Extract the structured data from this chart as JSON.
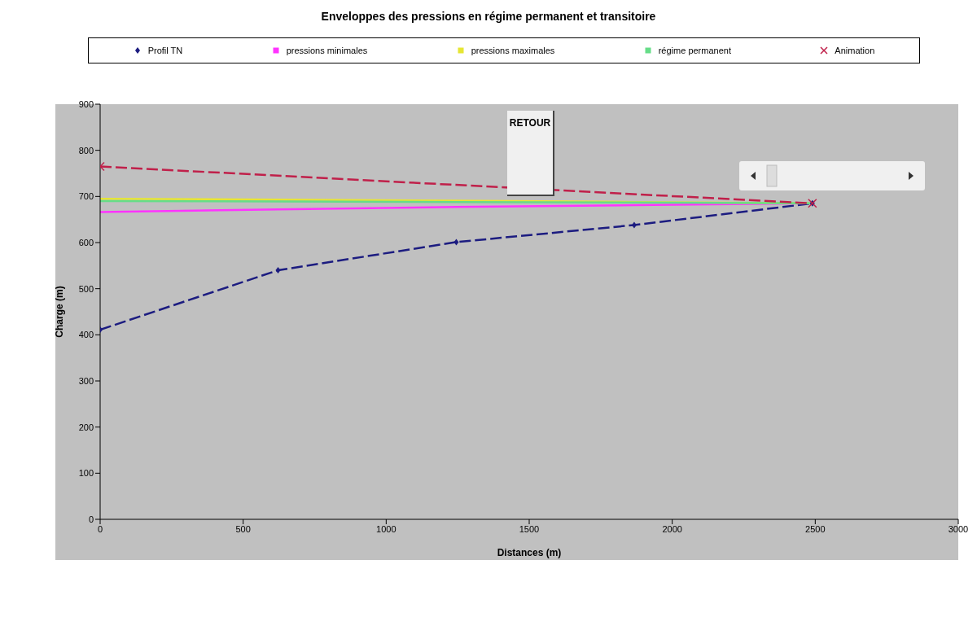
{
  "chart_data": {
    "type": "line",
    "title": "Enveloppes des pressions en régime permanent et transitoire",
    "xlabel": "Distances (m)",
    "ylabel": "Charge (m)",
    "xlim": [
      0,
      3000
    ],
    "xticks": [
      0,
      500,
      1000,
      1500,
      2000,
      2500,
      3000
    ],
    "ylim": [
      0,
      900
    ],
    "yticks": [
      0,
      100,
      200,
      300,
      400,
      500,
      600,
      700,
      800,
      900
    ],
    "legend": "top",
    "annotations": [
      "RETOUR"
    ],
    "series": [
      {
        "name": "Profil TN",
        "color": "#1c1c80",
        "x": [
          0,
          622,
          1245,
          1867,
          2490
        ],
        "values": [
          411,
          540,
          601,
          638,
          685
        ],
        "marker": "diamond",
        "line_style": "dashed"
      },
      {
        "name": "pressions minimales",
        "color": "#ff33ff",
        "x": [
          0,
          622,
          1245,
          1867,
          2490
        ],
        "values": [
          666,
          672,
          677,
          681,
          685
        ]
      },
      {
        "name": "pressions maximales",
        "color": "#e6e633",
        "x": [
          0,
          622,
          1245,
          1867,
          2490
        ],
        "values": [
          695,
          693,
          691,
          688,
          685
        ]
      },
      {
        "name": "régime permanent",
        "color": "#66dd88",
        "x": [
          0,
          622,
          1245,
          1867,
          2490
        ],
        "values": [
          690,
          689,
          688,
          687,
          685
        ]
      },
      {
        "name": "Animation",
        "color": "#c0204a",
        "x": [
          0,
          2490
        ],
        "values": [
          765,
          685
        ],
        "marker": "cross",
        "line_style": "dashed"
      }
    ]
  }
}
